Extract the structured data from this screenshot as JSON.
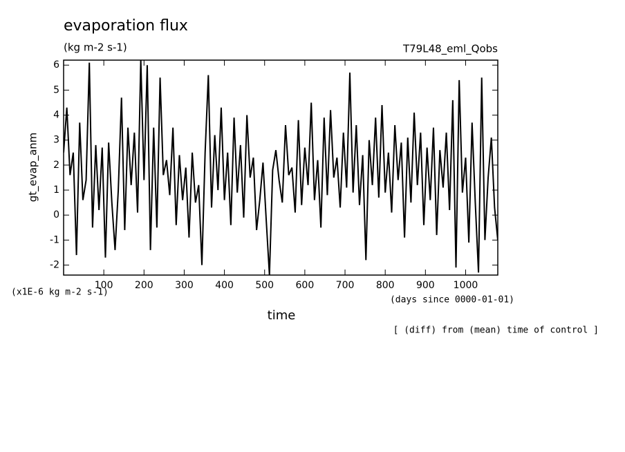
{
  "chart_data": {
    "type": "line",
    "title": "evaporation flux",
    "subtitle": "(kg m-2 s-1)",
    "run_label": "T79L48_eml_Qobs",
    "y_label": "gt_evap_anm",
    "y_unit": "(x1E-6 kg m-2 s-1)",
    "x_label": "time",
    "x_unit": "(days since 0000-01-01)",
    "note": "[ (diff) from (mean) time of control ]",
    "xlim": [
      0,
      1080
    ],
    "ylim": [
      -2.4,
      6.2
    ],
    "xticks": [
      100,
      200,
      300,
      400,
      500,
      600,
      700,
      800,
      900,
      1000
    ],
    "yticks": [
      -2,
      -1,
      0,
      1,
      2,
      3,
      4,
      5,
      6
    ],
    "series": [
      {
        "name": "gt_evap_anm",
        "color": "#000000",
        "x": [
          0,
          8,
          16,
          24,
          32,
          40,
          48,
          56,
          64,
          72,
          80,
          88,
          96,
          104,
          112,
          120,
          128,
          136,
          144,
          152,
          160,
          168,
          176,
          184,
          192,
          200,
          208,
          216,
          224,
          232,
          240,
          248,
          256,
          264,
          272,
          280,
          288,
          296,
          304,
          312,
          320,
          328,
          336,
          344,
          352,
          360,
          368,
          376,
          384,
          392,
          400,
          408,
          416,
          424,
          432,
          440,
          448,
          456,
          464,
          472,
          480,
          488,
          496,
          504,
          512,
          520,
          528,
          536,
          544,
          552,
          560,
          568,
          576,
          584,
          592,
          600,
          608,
          616,
          624,
          632,
          640,
          648,
          656,
          664,
          672,
          680,
          688,
          696,
          704,
          712,
          720,
          728,
          736,
          744,
          752,
          760,
          768,
          776,
          784,
          792,
          800,
          808,
          816,
          824,
          832,
          840,
          848,
          856,
          864,
          872,
          880,
          888,
          896,
          904,
          912,
          920,
          928,
          936,
          944,
          952,
          960,
          968,
          976,
          984,
          992,
          1000,
          1008,
          1016,
          1024,
          1032,
          1040,
          1048,
          1056,
          1064,
          1072,
          1080
        ],
        "values": [
          2.5,
          4.3,
          1.6,
          2.5,
          -1.6,
          3.7,
          0.6,
          1.4,
          6.1,
          -0.5,
          2.8,
          0.2,
          2.7,
          -1.7,
          2.9,
          0.5,
          -1.4,
          1.0,
          4.7,
          -0.6,
          3.5,
          1.2,
          3.3,
          0.1,
          6.2,
          1.4,
          6.0,
          -1.4,
          3.5,
          -0.5,
          5.5,
          1.6,
          2.2,
          0.8,
          3.5,
          -0.4,
          2.4,
          0.6,
          1.9,
          -0.9,
          2.5,
          0.5,
          1.2,
          -2.0,
          2.5,
          5.6,
          0.3,
          3.2,
          1.0,
          4.3,
          0.6,
          2.5,
          -0.4,
          3.9,
          0.9,
          2.8,
          -0.1,
          4.0,
          1.5,
          2.3,
          -0.6,
          0.6,
          2.1,
          -0.2,
          -2.4,
          1.8,
          2.6,
          1.4,
          0.5,
          3.6,
          1.6,
          1.9,
          0.1,
          3.8,
          0.4,
          2.7,
          1.2,
          4.5,
          0.6,
          2.2,
          -0.5,
          3.9,
          0.8,
          4.2,
          1.5,
          2.3,
          0.3,
          3.3,
          1.1,
          5.7,
          0.9,
          3.6,
          0.4,
          2.4,
          -1.8,
          3.0,
          1.2,
          3.9,
          0.7,
          4.4,
          0.9,
          2.5,
          0.1,
          3.6,
          1.4,
          2.9,
          -0.9,
          3.1,
          0.5,
          4.1,
          1.2,
          3.3,
          -0.4,
          2.7,
          0.6,
          3.5,
          -0.8,
          2.6,
          1.1,
          3.3,
          0.2,
          4.6,
          -2.1,
          5.4,
          0.9,
          2.3,
          -1.1,
          3.7,
          0.5,
          -2.3,
          5.5,
          -1.0,
          1.5,
          3.1,
          0.3,
          -1.0
        ]
      }
    ]
  }
}
